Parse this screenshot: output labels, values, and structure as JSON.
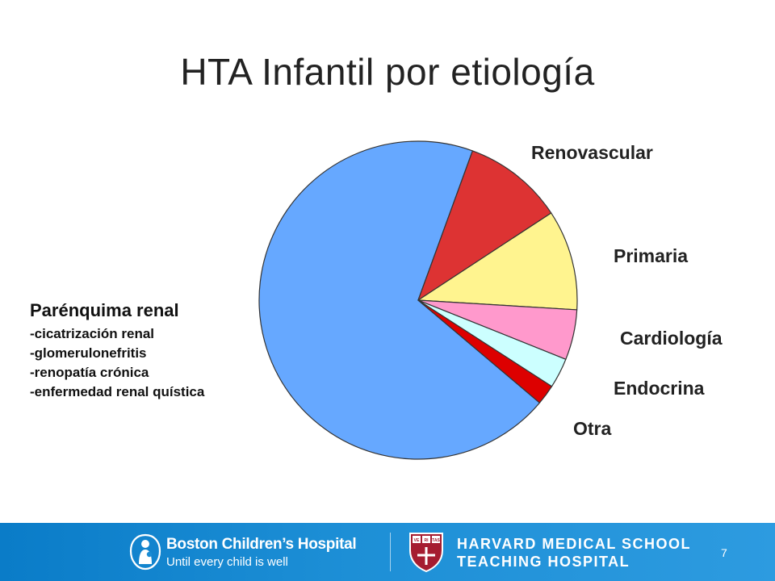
{
  "slide": {
    "title": "HTA Infantil por etiología",
    "page_number": "7"
  },
  "chart_data": {
    "type": "pie",
    "title": "HTA Infantil por etiología",
    "slices": [
      {
        "label": "Parénquima renal",
        "value": 68,
        "color": "#66a8ff"
      },
      {
        "label": "Renovascular",
        "value": 10,
        "color": "#dd3333"
      },
      {
        "label": "Primaria",
        "value": 10,
        "color": "#fff48f"
      },
      {
        "label": "Cardiología",
        "value": 5,
        "color": "#ff99cc"
      },
      {
        "label": "Endocrina",
        "value": 3,
        "color": "#ccffff"
      },
      {
        "label": "Otra",
        "value": 2,
        "color": "#dd0000"
      }
    ],
    "parenchyma_details": [
      "-cicatrización renal",
      "-glomerulonefritis",
      "-renopatía crónica",
      "-enfermedad renal quística"
    ]
  },
  "footer": {
    "bch_name": "Boston Children’s Hospital",
    "bch_tagline": "Until every child is well",
    "hms_line1": "HARVARD MEDICAL SCHOOL",
    "hms_line2": "TEACHING HOSPITAL",
    "shield_text": [
      "VE",
      "RI",
      "TAS"
    ],
    "bar_color": "#1a8cd4"
  }
}
